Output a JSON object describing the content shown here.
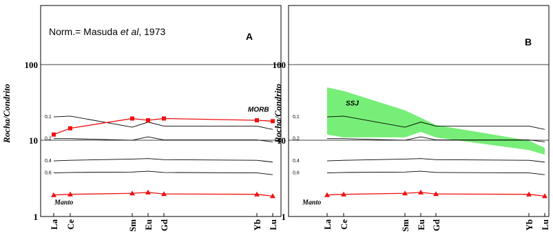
{
  "chart_data": [
    {
      "panel": "A",
      "type": "line",
      "yscale": "log",
      "ylim": [
        1,
        500
      ],
      "yticks": [
        "1",
        "10",
        "100"
      ],
      "ylabel": "Rocha/Condrito",
      "categories": [
        "La",
        "Ce",
        "Sm",
        "Eu",
        "Gd",
        "Yb",
        "Lu"
      ],
      "annotation_parts": [
        "Norm.= Masuda ",
        "et al",
        ", 1973"
      ],
      "panel_label": "A",
      "colors": {
        "red": "#ee1111",
        "black": "#000000"
      },
      "melt_curves": [
        {
          "label": "0,1",
          "values": [
            20.5,
            21,
            15,
            17.5,
            15.5,
            15.5,
            14
          ]
        },
        {
          "label": "0,2",
          "values": [
            10.6,
            10.6,
            10.1,
            11.2,
            10.2,
            10.2,
            9.6
          ]
        },
        {
          "label": "0,4",
          "values": [
            5.4,
            5.5,
            5.7,
            5.8,
            5.6,
            5.5,
            5.2
          ]
        },
        {
          "label": "0,6",
          "values": [
            3.75,
            3.8,
            3.85,
            3.95,
            3.8,
            3.75,
            3.55
          ]
        }
      ],
      "series": [
        {
          "name": "MORB",
          "marker": "square",
          "values": [
            12,
            14.5,
            19.5,
            18.5,
            19.5,
            18.5,
            18
          ]
        },
        {
          "name": "Manto",
          "marker": "triangle",
          "values": [
            1.92,
            1.96,
            2.02,
            2.08,
            1.98,
            1.96,
            1.86
          ]
        }
      ]
    },
    {
      "panel": "B",
      "type": "line",
      "yscale": "log",
      "ylim": [
        1,
        500
      ],
      "yticks": [
        "1",
        "10",
        "100"
      ],
      "ylabel": "Rocha/Condrito",
      "categories": [
        "La",
        "Ce",
        "Sm",
        "Eu",
        "Gd",
        "Yb",
        "Lu"
      ],
      "panel_label": "B",
      "colors": {
        "band": "#77ee77",
        "red": "#ee1111",
        "black": "#000000"
      },
      "band": {
        "name": "SSJ",
        "upper": [
          50,
          45,
          25,
          20,
          16,
          10,
          8
        ],
        "lower": [
          12,
          11,
          11,
          13,
          11,
          7.5,
          6.5
        ]
      },
      "melt_curves": [
        {
          "label": "0,1",
          "values": [
            20.5,
            21,
            15,
            17.5,
            15.5,
            15.5,
            14
          ]
        },
        {
          "label": "0,2",
          "values": [
            10.6,
            10.6,
            10.1,
            11.2,
            10.2,
            10.2,
            9.6
          ]
        },
        {
          "label": "0,4",
          "values": [
            5.4,
            5.5,
            5.7,
            5.8,
            5.6,
            5.5,
            5.2
          ]
        },
        {
          "label": "0,6",
          "values": [
            3.75,
            3.8,
            3.85,
            3.95,
            3.8,
            3.75,
            3.55
          ]
        }
      ],
      "series": [
        {
          "name": "Manto",
          "marker": "triangle",
          "values": [
            1.92,
            1.96,
            2.02,
            2.08,
            1.98,
            1.96,
            1.86
          ]
        }
      ]
    }
  ]
}
